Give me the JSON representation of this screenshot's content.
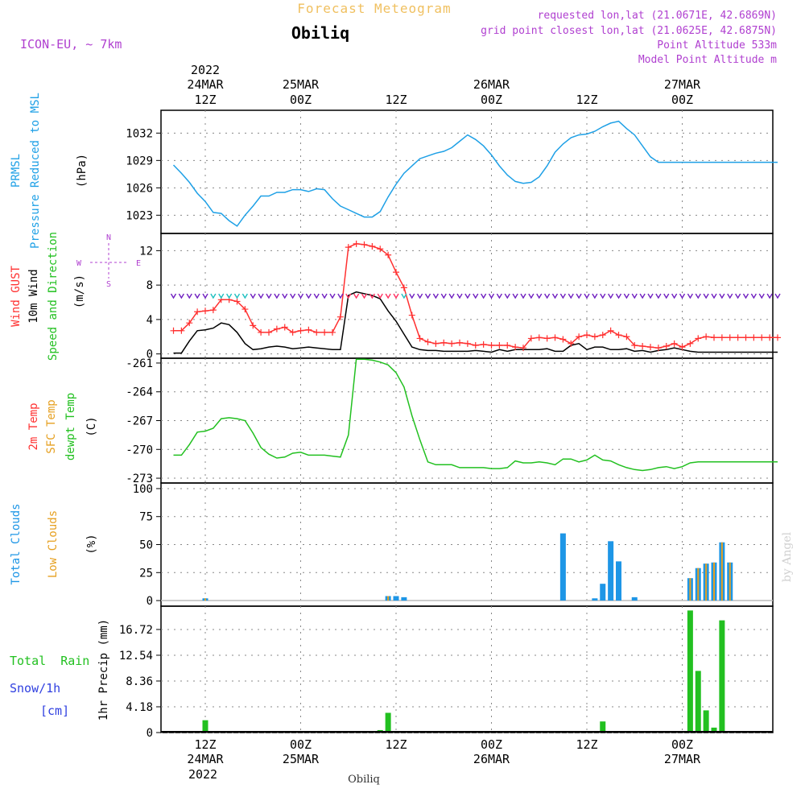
{
  "header": {
    "title": "Forecast Meteogram",
    "location": "Obiliq",
    "model": "ICON-EU, ~ 7km",
    "requested": "requested lon,lat (21.0671E, 42.6869N)",
    "gridpoint": "grid point closest lon,lat (21.0625E, 42.6875N)",
    "point_alt": "Point Altitude 533m",
    "model_alt": "Model Point Altitude m",
    "credit": "by Angel",
    "footer_location": "Obiliq"
  },
  "time_axis": {
    "top_year": "2022",
    "bottom_year": "2022",
    "ticks": [
      {
        "hour": 12,
        "label": "12Z",
        "date": "24MAR"
      },
      {
        "hour": 24,
        "label": "00Z",
        "date": "25MAR"
      },
      {
        "hour": 36,
        "label": "12Z",
        "date": ""
      },
      {
        "hour": 48,
        "label": "00Z",
        "date": "26MAR"
      },
      {
        "hour": 60,
        "label": "12Z",
        "date": ""
      },
      {
        "hour": 72,
        "label": "00Z",
        "date": "27MAR"
      }
    ]
  },
  "labels": {
    "prmsl_1": "PRMSL",
    "prmsl_2": "Pressure Reduced to MSL",
    "prmsl_unit": "(hPa)",
    "wind_gust": "Wind GUST",
    "wind_10m": "10m Wind",
    "wind_dir": "Speed and Direction",
    "wind_unit": "(m/s)",
    "compass_n": "N",
    "compass_s": "S",
    "compass_w": "W",
    "compass_e": "E",
    "temp_2m": "2m Temp",
    "temp_sfc": "SFC Temp",
    "temp_dew": "dewpt Temp",
    "temp_unit": "(C)",
    "cloud_total": "Total Clouds",
    "cloud_low": "Low Clouds",
    "cloud_unit": "(%)",
    "rain_total": "Total  Rain",
    "rain_snow": "Snow/1h",
    "rain_cm": "[cm]",
    "rain_unit": "1hr Precip (mm)"
  },
  "colors": {
    "pressure": "#1ea0e6",
    "gust": "#ff3030",
    "wind": "#000000",
    "temp": "#22c020",
    "total_cloud": "#1e96e6",
    "low_cloud": "#e6a020",
    "rain": "#22c020",
    "snow": "#3040e0",
    "header": "#b040d0",
    "title": "#f0c060"
  },
  "chart_data": [
    {
      "type": "line",
      "name": "pressure",
      "ylim": [
        1021,
        1034.5
      ],
      "yticks": [
        "1023",
        "1026",
        "1029",
        "1032"
      ],
      "ytick_values": [
        1023,
        1026,
        1029,
        1032
      ],
      "x": [
        8,
        9,
        10,
        11,
        12,
        13,
        14,
        15,
        16,
        17,
        18,
        19,
        20,
        21,
        22,
        23,
        24,
        25,
        26,
        27,
        28,
        29,
        30,
        31,
        32,
        33,
        34,
        35,
        36,
        37,
        38,
        39,
        40,
        41,
        42,
        43,
        44,
        45,
        46,
        47,
        48,
        49,
        50,
        51,
        52,
        53,
        54,
        55,
        56,
        57,
        58,
        59,
        60,
        61,
        62,
        63,
        64,
        65,
        66,
        67,
        68,
        69,
        70,
        71,
        72,
        73,
        74,
        75,
        76,
        77,
        78,
        79,
        80,
        81,
        82,
        83,
        84
      ],
      "values": [
        1028.5,
        1027.6,
        1026.6,
        1025.4,
        1024.5,
        1023.3,
        1023.2,
        1022.4,
        1021.8,
        1023.0,
        1024.0,
        1025.1,
        1025.1,
        1025.5,
        1025.5,
        1025.8,
        1025.8,
        1025.6,
        1025.9,
        1025.8,
        1024.8,
        1024.0,
        1023.6,
        1023.2,
        1022.8,
        1022.8,
        1023.4,
        1025.0,
        1026.4,
        1027.6,
        1028.4,
        1029.2,
        1029.5,
        1029.8,
        1030.0,
        1030.4,
        1031.1,
        1031.8,
        1031.3,
        1030.6,
        1029.6,
        1028.4,
        1027.4,
        1026.7,
        1026.5,
        1026.6,
        1027.2,
        1028.4,
        1029.9,
        1030.8,
        1031.5,
        1031.8,
        1031.9,
        1032.2,
        1032.7,
        1033.1,
        1033.3,
        1032.5,
        1031.8,
        1030.6,
        1029.4,
        1028.8,
        1028.8,
        1028.8,
        1028.8,
        1028.8,
        1028.8,
        1028.8,
        1028.8,
        1028.8,
        1028.8,
        1028.8,
        1028.8,
        1028.8,
        1028.8,
        1028.8,
        1028.8
      ]
    },
    {
      "type": "line",
      "name": "wind",
      "ylim": [
        -0.5,
        14
      ],
      "yticks": [
        "0",
        "4",
        "8",
        "12"
      ],
      "ytick_values": [
        0,
        4,
        8,
        12
      ],
      "x": [
        8,
        9,
        10,
        11,
        12,
        13,
        14,
        15,
        16,
        17,
        18,
        19,
        20,
        21,
        22,
        23,
        24,
        25,
        26,
        27,
        28,
        29,
        30,
        31,
        32,
        33,
        34,
        35,
        36,
        37,
        38,
        39,
        40,
        41,
        42,
        43,
        44,
        45,
        46,
        47,
        48,
        49,
        50,
        51,
        52,
        53,
        54,
        55,
        56,
        57,
        58,
        59,
        60,
        61,
        62,
        63,
        64,
        65,
        66,
        67,
        68,
        69,
        70,
        71,
        72,
        73,
        74,
        75,
        76,
        77,
        78,
        79,
        80,
        81,
        82,
        83,
        84
      ],
      "gust": [
        2.7,
        2.7,
        3.6,
        4.9,
        5.0,
        5.1,
        6.3,
        6.3,
        6.1,
        5.2,
        3.3,
        2.5,
        2.5,
        2.9,
        3.1,
        2.5,
        2.7,
        2.8,
        2.5,
        2.5,
        2.5,
        4.3,
        12.4,
        12.8,
        12.7,
        12.5,
        12.2,
        11.5,
        9.5,
        7.7,
        4.5,
        1.8,
        1.4,
        1.2,
        1.3,
        1.2,
        1.3,
        1.2,
        1.0,
        1.1,
        1.0,
        1.0,
        1.0,
        0.8,
        0.7,
        1.8,
        1.9,
        1.8,
        1.9,
        1.7,
        1.2,
        2.0,
        2.2,
        2.0,
        2.2,
        2.7,
        2.2,
        2.0,
        1.0,
        0.9,
        0.8,
        0.7,
        0.9,
        1.2,
        0.8,
        1.2,
        1.8,
        2.0,
        1.9,
        1.9,
        1.9,
        1.9,
        1.9,
        1.9,
        1.9,
        1.9,
        1.9
      ],
      "wind": [
        0.1,
        0.1,
        1.5,
        2.7,
        2.8,
        3.0,
        3.6,
        3.4,
        2.5,
        1.2,
        0.5,
        0.6,
        0.8,
        0.9,
        0.8,
        0.6,
        0.7,
        0.8,
        0.7,
        0.6,
        0.5,
        0.5,
        6.8,
        7.2,
        7.0,
        6.8,
        6.4,
        5.0,
        3.8,
        2.3,
        0.8,
        0.5,
        0.4,
        0.4,
        0.3,
        0.3,
        0.3,
        0.3,
        0.4,
        0.3,
        0.2,
        0.5,
        0.3,
        0.5,
        0.5,
        0.5,
        0.5,
        0.6,
        0.3,
        0.3,
        1.0,
        1.2,
        0.5,
        0.8,
        0.8,
        0.5,
        0.5,
        0.6,
        0.3,
        0.4,
        0.2,
        0.4,
        0.5,
        0.7,
        0.5,
        0.3,
        0.2,
        0.2,
        0.2,
        0.2,
        0.2,
        0.2,
        0.2,
        0.2,
        0.2,
        0.2,
        0.2
      ]
    },
    {
      "type": "line",
      "name": "temperature",
      "ylim": [
        -273.5,
        -260.5
      ],
      "yticks": [
        "-261",
        "-264",
        "-267",
        "-270",
        "-273"
      ],
      "ytick_values": [
        -261,
        -264,
        -267,
        -270,
        -273
      ],
      "x": [
        8,
        9,
        10,
        11,
        12,
        13,
        14,
        15,
        16,
        17,
        18,
        19,
        20,
        21,
        22,
        23,
        24,
        25,
        26,
        27,
        28,
        29,
        30,
        31,
        32,
        33,
        34,
        35,
        36,
        37,
        38,
        39,
        40,
        41,
        42,
        43,
        44,
        45,
        46,
        47,
        48,
        49,
        50,
        51,
        52,
        53,
        54,
        55,
        56,
        57,
        58,
        59,
        60,
        61,
        62,
        63,
        64,
        65,
        66,
        67,
        68,
        69,
        70,
        71,
        72,
        73,
        74,
        75,
        76,
        77,
        78,
        79,
        80,
        81,
        82,
        83,
        84
      ],
      "values": [
        -270.6,
        -270.6,
        -269.5,
        -268.2,
        -268.1,
        -267.8,
        -266.8,
        -266.7,
        -266.8,
        -267.0,
        -268.3,
        -269.8,
        -270.5,
        -270.9,
        -270.8,
        -270.4,
        -270.3,
        -270.6,
        -270.6,
        -270.6,
        -270.7,
        -270.8,
        -268.5,
        -260.6,
        -260.6,
        -260.7,
        -260.9,
        -261.2,
        -262.0,
        -263.5,
        -266.5,
        -269.0,
        -271.3,
        -271.6,
        -271.6,
        -271.6,
        -271.9,
        -271.9,
        -271.9,
        -271.9,
        -272.0,
        -272.0,
        -271.9,
        -271.2,
        -271.4,
        -271.4,
        -271.3,
        -271.4,
        -271.6,
        -271.0,
        -271.0,
        -271.3,
        -271.1,
        -270.6,
        -271.1,
        -271.2,
        -271.6,
        -271.9,
        -272.1,
        -272.2,
        -272.1,
        -271.9,
        -271.8,
        -272.0,
        -271.8,
        -271.4,
        -271.3,
        -271.3,
        -271.3,
        -271.3,
        -271.3,
        -271.3,
        -271.3,
        -271.3,
        -271.3,
        -271.3,
        -271.3
      ]
    },
    {
      "type": "bar",
      "name": "clouds",
      "ylim": [
        -5,
        105
      ],
      "yticks": [
        "0",
        "25",
        "50",
        "75",
        "100"
      ],
      "ytick_values": [
        0,
        25,
        50,
        75,
        100
      ],
      "x": [
        12,
        35,
        36,
        37,
        57,
        61,
        62,
        63,
        64,
        66,
        73,
        74,
        75,
        76,
        77,
        78
      ],
      "total": [
        2,
        4,
        4,
        3,
        60,
        2,
        15,
        53,
        35,
        3,
        20,
        29,
        33,
        34,
        52,
        34
      ],
      "low": [
        2,
        4,
        0,
        0,
        0,
        0,
        0,
        0,
        0,
        0,
        20,
        29,
        33,
        34,
        52,
        34
      ]
    },
    {
      "type": "bar",
      "name": "precipitation",
      "ylim": [
        0,
        20.5
      ],
      "yticks": [
        "0",
        "4.18",
        "8.36",
        "12.54",
        "16.72"
      ],
      "ytick_values": [
        0,
        4.18,
        8.36,
        12.54,
        16.72
      ],
      "x": [
        12,
        34,
        35,
        62,
        73,
        74,
        75,
        76,
        77
      ],
      "rain": [
        2.0,
        0.4,
        3.2,
        1.8,
        19.8,
        10.0,
        3.6,
        0.8,
        18.2
      ],
      "snow": [
        0,
        0,
        0,
        0,
        0,
        0,
        0,
        0,
        0
      ]
    }
  ]
}
